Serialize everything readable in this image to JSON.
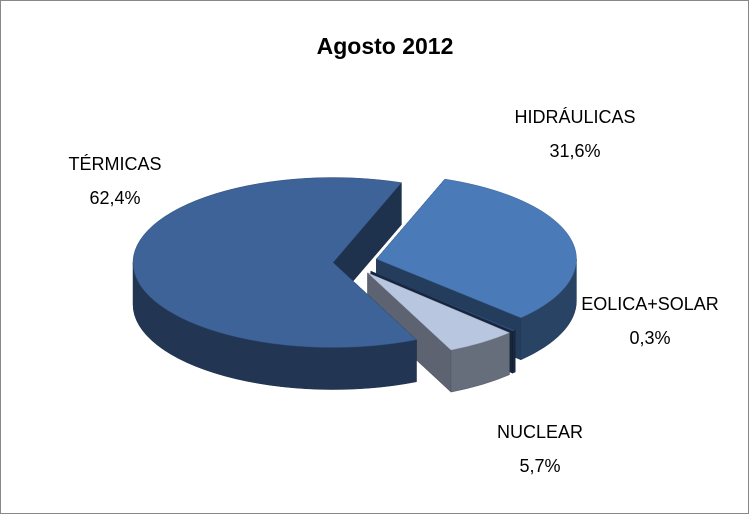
{
  "chart_data": {
    "type": "pie3d",
    "title": "Agosto 2012",
    "categories": [
      "HIDRÁULICAS",
      "EOLICA+SOLAR",
      "NUCLEAR",
      "TÉRMICAS"
    ],
    "values": [
      31.6,
      0.3,
      5.7,
      62.4
    ],
    "value_labels": [
      "31,6%",
      "0,3%",
      "5,7%",
      "62,4%"
    ],
    "colors": [
      "#4a7ab8",
      "#2b4a75",
      "#b9c6e0",
      "#3d6399"
    ]
  }
}
